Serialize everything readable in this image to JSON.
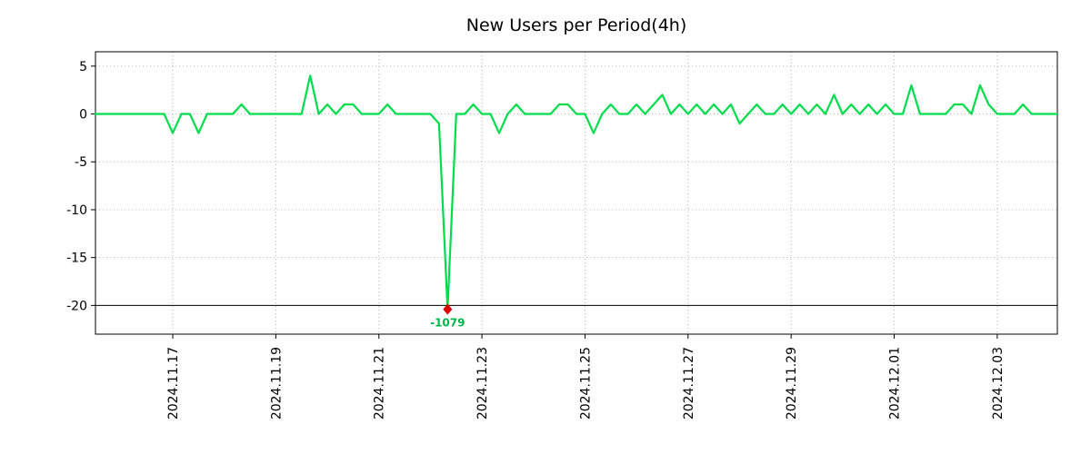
{
  "chart_data": {
    "type": "line",
    "title": "New Users per Period(4h)",
    "xlabel": "",
    "ylabel": "",
    "period": "4h",
    "grid": true,
    "grid_color": "#b3b3b3",
    "line_color": "#00dd4c",
    "marker_color": "#dd0000",
    "background": "#ffffff",
    "ylim": [
      -23,
      6.5
    ],
    "y_ticks": [
      5,
      0,
      -5,
      -10,
      -15,
      -20
    ],
    "baseline_y": -20,
    "clip_min": -20.4,
    "x_ticks": [
      {
        "index": 9,
        "label": "2024.11.17"
      },
      {
        "index": 21,
        "label": "2024.11.19"
      },
      {
        "index": 33,
        "label": "2024.11.21"
      },
      {
        "index": 45,
        "label": "2024.11.23"
      },
      {
        "index": 57,
        "label": "2024.11.25"
      },
      {
        "index": 69,
        "label": "2024.11.27"
      },
      {
        "index": 81,
        "label": "2024.11.29"
      },
      {
        "index": 93,
        "label": "2024.12.01"
      },
      {
        "index": 105,
        "label": "2024.12.03"
      }
    ],
    "annotation": {
      "text": "-1079",
      "color": "#00b44a"
    },
    "min_value": -1079,
    "values": [
      0,
      0,
      0,
      0,
      0,
      0,
      0,
      0,
      0,
      -2,
      0,
      0,
      -2,
      0,
      0,
      0,
      0,
      1,
      0,
      0,
      0,
      0,
      0,
      0,
      0,
      4,
      0,
      1,
      0,
      1,
      1,
      0,
      0,
      0,
      1,
      0,
      0,
      0,
      0,
      0,
      -1,
      -1079,
      0,
      0,
      1,
      0,
      0,
      -2,
      0,
      1,
      0,
      0,
      0,
      0,
      1,
      1,
      0,
      0,
      -2,
      0,
      1,
      0,
      0,
      1,
      0,
      1,
      2,
      0,
      1,
      0,
      1,
      0,
      1,
      0,
      1,
      -1,
      0,
      1,
      0,
      0,
      1,
      0,
      1,
      0,
      1,
      0,
      2,
      0,
      1,
      0,
      1,
      0,
      1,
      0,
      0,
      3,
      0,
      0,
      0,
      0,
      1,
      1,
      0,
      3,
      1,
      0,
      0,
      0,
      1,
      0,
      0,
      0,
      0
    ]
  }
}
